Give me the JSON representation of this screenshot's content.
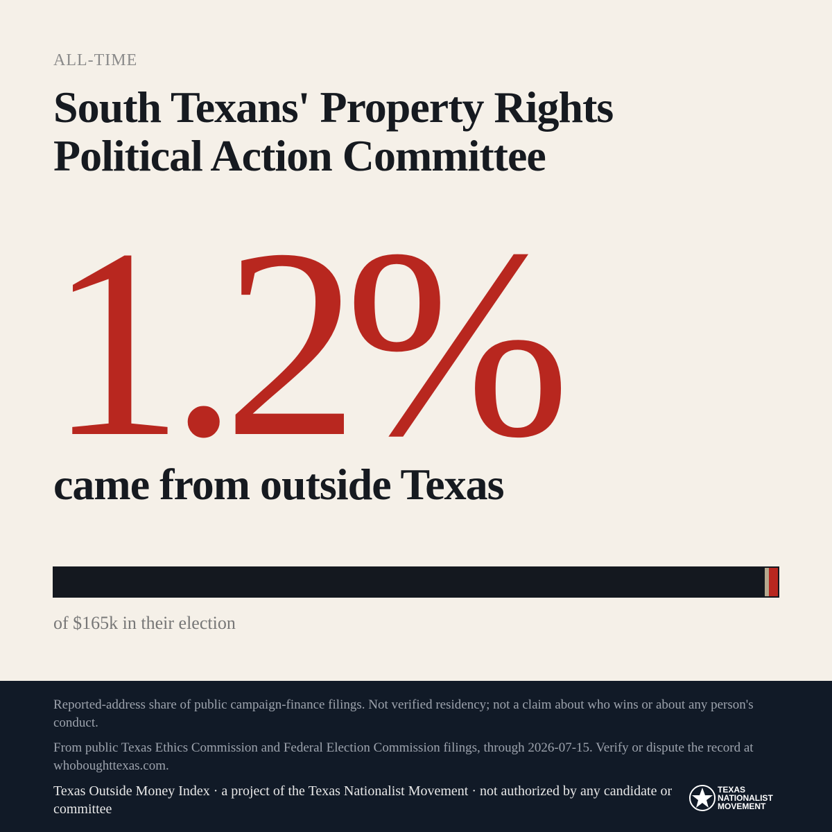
{
  "header": {
    "eyebrow": "ALL-TIME",
    "title": "South Texans' Property Rights Political Action Committee"
  },
  "stat": {
    "value": 1.2,
    "label": "1.2%",
    "caption": "came from outside Texas",
    "total_note": "of $165k in their election"
  },
  "footer": {
    "disclaimer": "Reported-address share of public campaign-finance filings. Not verified residency; not a claim about who wins or about any person's conduct.",
    "source": "From public Texas Ethics Commission and Federal Election Commission filings, through 2026-07-15. Verify or dispute the record at whoboughttexas.com.",
    "credit": "Texas Outside Money Index · a project of the Texas Nationalist Movement · not authorized by any candidate or committee",
    "logo": [
      "TEXAS",
      "NATIONALIST",
      "MOVEMENT"
    ]
  }
}
